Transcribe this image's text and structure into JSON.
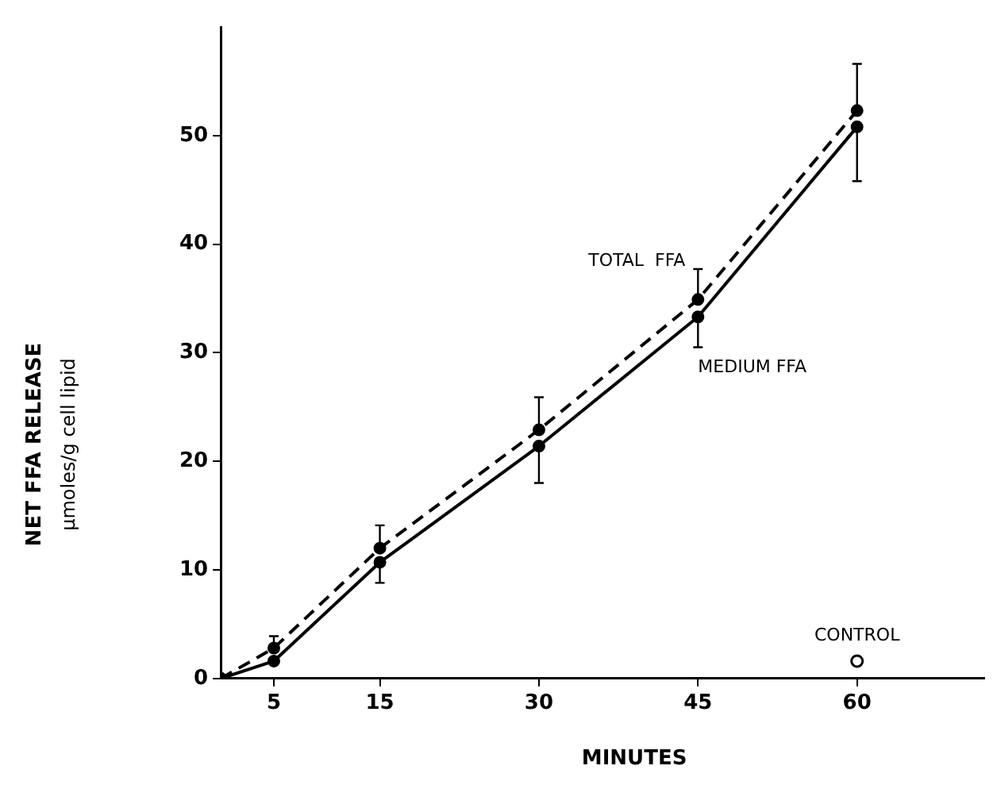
{
  "chart_data": {
    "type": "line",
    "xlabel": "MINUTES",
    "ylabel": "NET FFA RELEASE\nµmoles/g cell lipid",
    "x": [
      0,
      5,
      15,
      30,
      45,
      60
    ],
    "xlim": [
      0,
      72
    ],
    "xticks": [
      5,
      15,
      30,
      45,
      60
    ],
    "ylim": [
      0,
      60
    ],
    "yticks": [
      0,
      10,
      20,
      30,
      40,
      50
    ],
    "grid": false,
    "legend": false,
    "marker": "circle",
    "series": [
      {
        "name": "TOTAL  FFA",
        "color": "#000000",
        "line_style": "dashed",
        "values": [
          0,
          2.8,
          12.0,
          22.9,
          34.9,
          52.3
        ],
        "errors": [
          null,
          [
            2.8,
            3.9
          ],
          [
            12.0,
            14.1
          ],
          [
            22.9,
            25.9
          ],
          [
            34.9,
            37.7
          ],
          [
            52.3,
            56.6
          ]
        ]
      },
      {
        "name": "MEDIUM FFA",
        "color": "#000000",
        "line_style": "solid",
        "values": [
          0,
          1.6,
          10.7,
          21.4,
          33.3,
          50.8
        ],
        "errors": [
          null,
          null,
          [
            8.8,
            10.7
          ],
          [
            18.0,
            21.4
          ],
          [
            30.5,
            33.3
          ],
          [
            45.8,
            50.8
          ]
        ]
      },
      {
        "name": "CONTROL",
        "type": "scatter",
        "color": "#000000",
        "marker": "circle",
        "x": [
          60
        ],
        "values": [
          1.6
        ]
      }
    ]
  }
}
